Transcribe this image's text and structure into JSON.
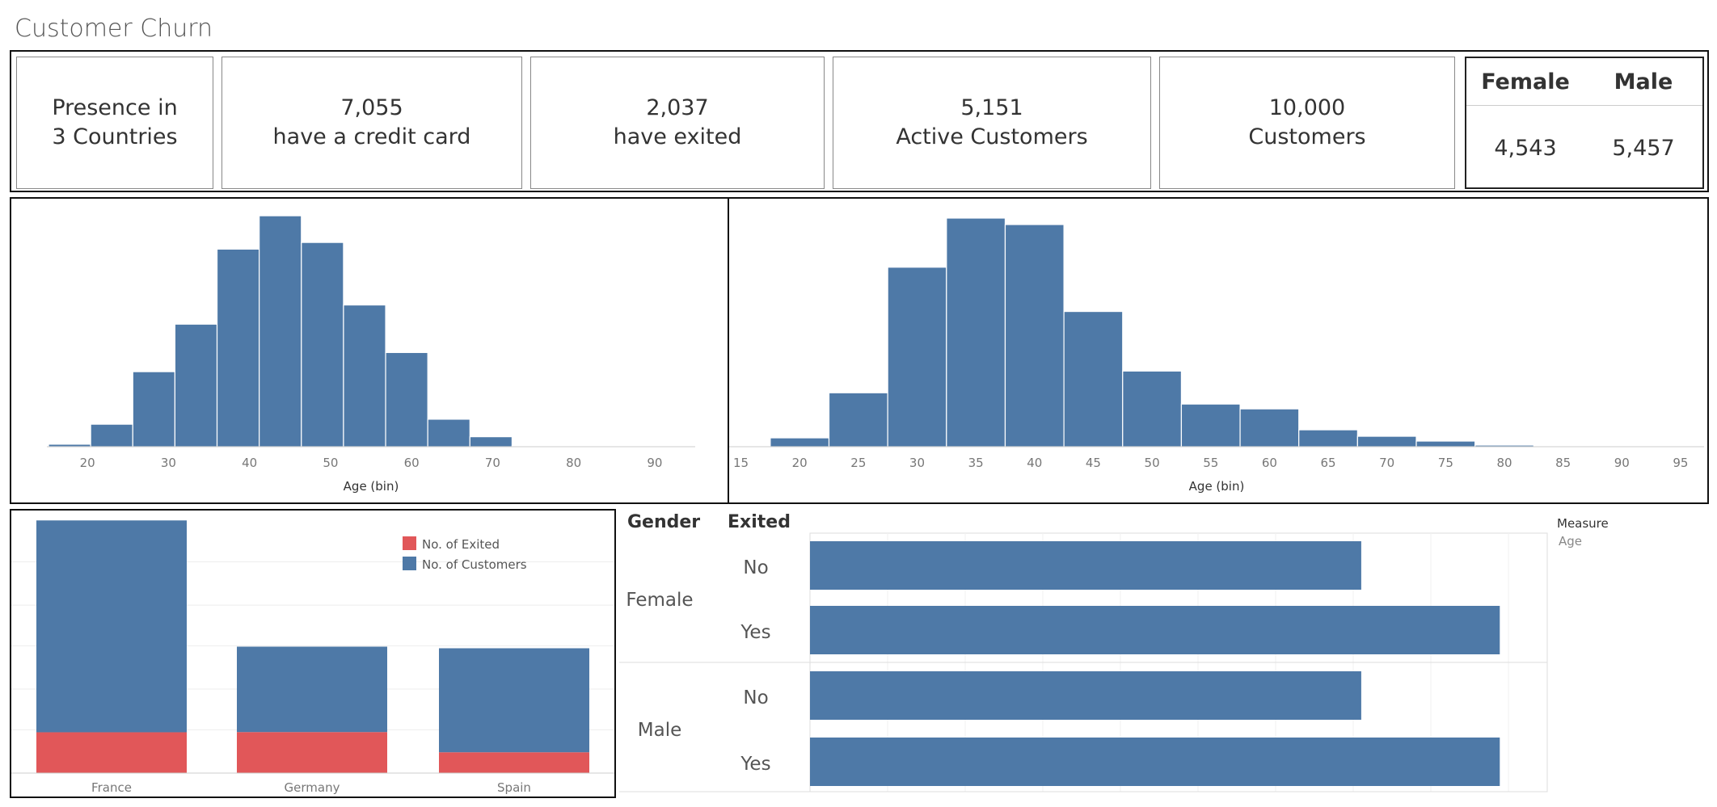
{
  "title": "Customer Churn",
  "kpis": [
    {
      "line1": "Presence in",
      "line2": "3 Countries"
    },
    {
      "line1": "7,055",
      "line2": "have a credit card"
    },
    {
      "line1": "2,037",
      "line2": "have exited"
    },
    {
      "line1": "5,151",
      "line2": "Active Customers"
    },
    {
      "line1": "10,000",
      "line2": "Customers"
    }
  ],
  "gender_table": {
    "headers": [
      "Female",
      "Male"
    ],
    "values": [
      "4,543",
      "5,457"
    ]
  },
  "colors": {
    "blue": "#4e79a7",
    "red": "#e15759"
  },
  "chart_data": [
    {
      "type": "bar",
      "title": "",
      "xlabel": "Age (bin)",
      "ylabel": "",
      "bin_width": 5.2,
      "x_ticks": [
        20,
        30,
        40,
        50,
        60,
        70,
        80,
        90
      ],
      "xlim": [
        15,
        95
      ],
      "bins": [
        {
          "start": 15.2,
          "value": 3
        },
        {
          "start": 20.4,
          "value": 27
        },
        {
          "start": 25.6,
          "value": 90
        },
        {
          "start": 30.8,
          "value": 147
        },
        {
          "start": 36.0,
          "value": 237
        },
        {
          "start": 41.2,
          "value": 277
        },
        {
          "start": 46.4,
          "value": 245
        },
        {
          "start": 51.6,
          "value": 170
        },
        {
          "start": 56.8,
          "value": 113
        },
        {
          "start": 62.0,
          "value": 33
        },
        {
          "start": 67.2,
          "value": 12
        },
        {
          "start": 72.4,
          "value": 1
        },
        {
          "start": 77.6,
          "value": 0.5
        },
        {
          "start": 82.8,
          "value": 0.3
        },
        {
          "start": 88.0,
          "value": 0.2
        }
      ],
      "ylim": [
        0,
        280
      ]
    },
    {
      "type": "bar",
      "title": "",
      "xlabel": "Age (bin)",
      "ylabel": "",
      "bin_width": 5,
      "x_ticks": [
        15,
        20,
        25,
        30,
        35,
        40,
        45,
        50,
        55,
        60,
        65,
        70,
        75,
        80,
        85,
        90,
        95
      ],
      "xlim": [
        14,
        97
      ],
      "bins": [
        {
          "start": 17.5,
          "value": 11
        },
        {
          "start": 22.5,
          "value": 67
        },
        {
          "start": 27.5,
          "value": 223
        },
        {
          "start": 32.5,
          "value": 284
        },
        {
          "start": 37.5,
          "value": 276
        },
        {
          "start": 42.5,
          "value": 168
        },
        {
          "start": 47.5,
          "value": 94
        },
        {
          "start": 52.5,
          "value": 53
        },
        {
          "start": 57.5,
          "value": 47
        },
        {
          "start": 62.5,
          "value": 21
        },
        {
          "start": 67.5,
          "value": 13
        },
        {
          "start": 72.5,
          "value": 7
        },
        {
          "start": 77.5,
          "value": 2
        }
      ],
      "ylim": [
        0,
        290
      ]
    },
    {
      "type": "bar",
      "stacked": true,
      "title": "",
      "categories": [
        "France",
        "Germany",
        "Spain"
      ],
      "series": [
        {
          "name": "No. of Exited",
          "values": [
            810,
            814,
            413
          ]
        },
        {
          "name": "No. of Customers",
          "values": [
            4204,
            1695,
            2064
          ]
        }
      ],
      "ylim": [
        0,
        5050
      ],
      "legend": "top-right"
    },
    {
      "type": "bar",
      "orientation": "horizontal",
      "row_headers": [
        "Gender",
        "Exited"
      ],
      "legend_title": "Measure",
      "legend_item": "Age",
      "rows": [
        {
          "gender": "Female",
          "exited": "No",
          "value": 37.8
        },
        {
          "gender": "Female",
          "exited": "Yes",
          "value": 47.3
        },
        {
          "gender": "Male",
          "exited": "No",
          "value": 37.8
        },
        {
          "gender": "Male",
          "exited": "Yes",
          "value": 47.3
        }
      ],
      "xlim": [
        0,
        50
      ]
    }
  ]
}
